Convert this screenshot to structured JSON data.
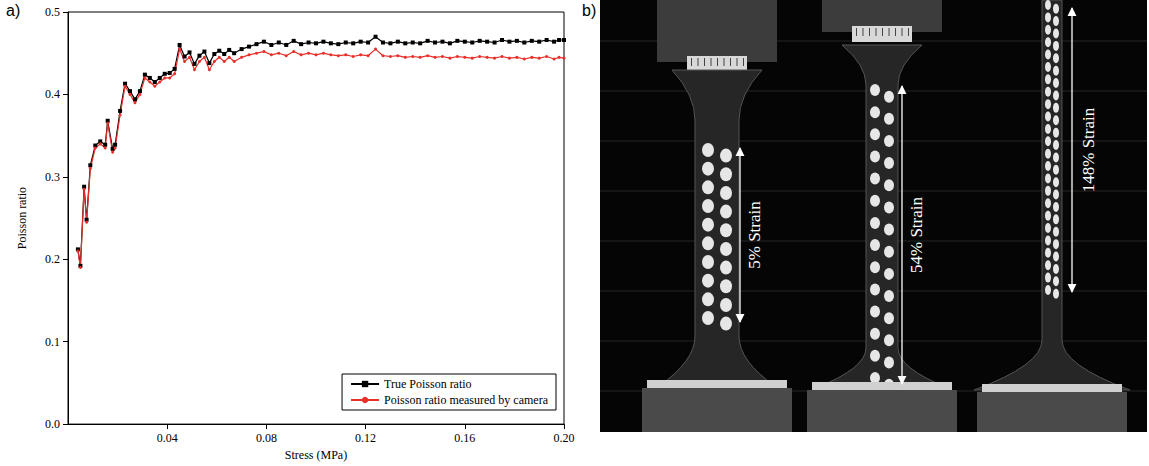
{
  "chart_data": {
    "type": "line",
    "annotations": [
      {
        "text": "a)"
      }
    ],
    "x_label": "Stress (MPa)",
    "y_label": "Poisson ratio",
    "x": [
      0.004,
      0.005,
      0.0065,
      0.0075,
      0.009,
      0.011,
      0.013,
      0.015,
      0.016,
      0.018,
      0.019,
      0.021,
      0.023,
      0.025,
      0.027,
      0.029,
      0.031,
      0.033,
      0.035,
      0.037,
      0.039,
      0.041,
      0.043,
      0.045,
      0.047,
      0.049,
      0.051,
      0.053,
      0.055,
      0.057,
      0.059,
      0.061,
      0.063,
      0.065,
      0.067,
      0.07,
      0.073,
      0.076,
      0.079,
      0.082,
      0.085,
      0.088,
      0.091,
      0.094,
      0.097,
      0.1,
      0.103,
      0.106,
      0.109,
      0.112,
      0.115,
      0.118,
      0.121,
      0.124,
      0.127,
      0.13,
      0.133,
      0.136,
      0.139,
      0.142,
      0.145,
      0.148,
      0.151,
      0.154,
      0.157,
      0.16,
      0.163,
      0.166,
      0.169,
      0.172,
      0.175,
      0.178,
      0.181,
      0.184,
      0.187,
      0.19,
      0.193,
      0.196,
      0.198,
      0.2
    ],
    "series": [
      {
        "name": "True Poisson ratio",
        "color": "#000000",
        "marker": "square",
        "line_style": "solid",
        "values": [
          0.212,
          0.192,
          0.288,
          0.248,
          0.314,
          0.338,
          0.343,
          0.339,
          0.368,
          0.334,
          0.339,
          0.38,
          0.413,
          0.404,
          0.394,
          0.404,
          0.424,
          0.42,
          0.415,
          0.42,
          0.425,
          0.426,
          0.431,
          0.46,
          0.446,
          0.451,
          0.437,
          0.447,
          0.452,
          0.438,
          0.449,
          0.453,
          0.449,
          0.454,
          0.45,
          0.455,
          0.458,
          0.461,
          0.464,
          0.46,
          0.463,
          0.46,
          0.465,
          0.461,
          0.463,
          0.462,
          0.464,
          0.462,
          0.461,
          0.463,
          0.462,
          0.464,
          0.463,
          0.47,
          0.463,
          0.462,
          0.464,
          0.462,
          0.463,
          0.462,
          0.465,
          0.463,
          0.464,
          0.462,
          0.465,
          0.464,
          0.463,
          0.465,
          0.464,
          0.463,
          0.466,
          0.464,
          0.465,
          0.463,
          0.465,
          0.464,
          0.466,
          0.464,
          0.466,
          0.466
        ]
      },
      {
        "name": "Poisson ratio measured by camera",
        "color": "#e8302a",
        "marker": "circle",
        "line_style": "solid",
        "values": [
          0.21,
          0.19,
          0.285,
          0.245,
          0.31,
          0.335,
          0.34,
          0.335,
          0.365,
          0.33,
          0.335,
          0.375,
          0.41,
          0.4,
          0.39,
          0.4,
          0.42,
          0.415,
          0.41,
          0.415,
          0.42,
          0.42,
          0.425,
          0.455,
          0.44,
          0.445,
          0.43,
          0.44,
          0.445,
          0.43,
          0.44,
          0.445,
          0.44,
          0.445,
          0.44,
          0.445,
          0.448,
          0.45,
          0.452,
          0.448,
          0.45,
          0.447,
          0.452,
          0.448,
          0.45,
          0.448,
          0.45,
          0.448,
          0.447,
          0.448,
          0.446,
          0.448,
          0.447,
          0.455,
          0.447,
          0.446,
          0.447,
          0.445,
          0.446,
          0.445,
          0.447,
          0.445,
          0.446,
          0.444,
          0.446,
          0.445,
          0.444,
          0.446,
          0.445,
          0.444,
          0.446,
          0.444,
          0.445,
          0.443,
          0.445,
          0.444,
          0.446,
          0.443,
          0.445,
          0.444
        ]
      }
    ],
    "xlim": [
      0,
      0.2
    ],
    "xticks": [
      0.04,
      0.08,
      0.12,
      0.16,
      {
        "value": 0.2,
        "label": "0.20"
      }
    ],
    "ylim": [
      0,
      0.5
    ],
    "yticks": [
      {
        "value": 0,
        "label": "0.0"
      },
      0.1,
      0.2,
      0.3,
      0.4,
      0.5
    ],
    "grid": false,
    "legend": "lower right"
  },
  "photo": {
    "panel_label": "b)",
    "specimens": [
      {
        "label": "5% Strain"
      },
      {
        "label": "54% Strain"
      },
      {
        "label": "148% Strain"
      }
    ]
  }
}
